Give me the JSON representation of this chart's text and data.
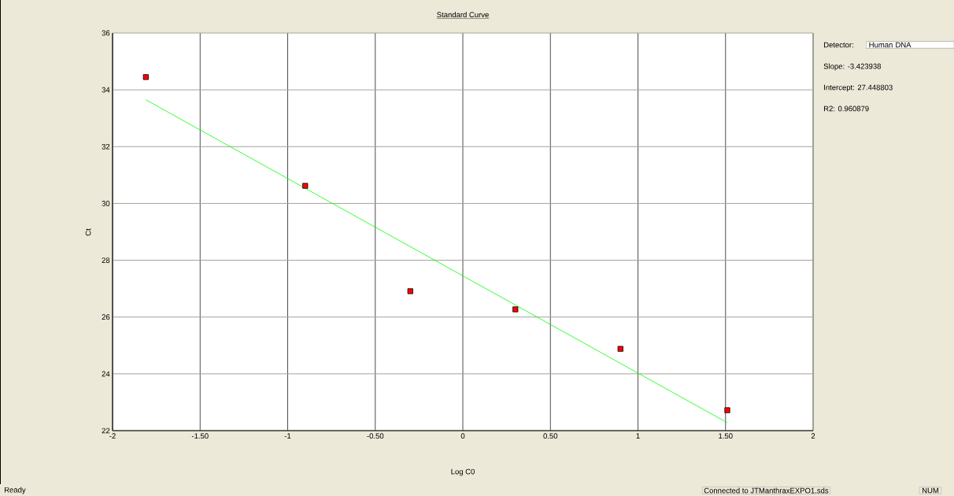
{
  "chart_data": {
    "type": "scatter",
    "title": "Standard Curve",
    "xlabel": "Log C0",
    "ylabel": "Ct",
    "xlim": [
      -2,
      2
    ],
    "ylim": [
      22,
      36
    ],
    "xticks": [
      {
        "value": -2,
        "label": "-2"
      },
      {
        "value": -1.5,
        "label": "-1.50"
      },
      {
        "value": -1,
        "label": "-1"
      },
      {
        "value": -0.5,
        "label": "-0.50"
      },
      {
        "value": 0,
        "label": "0"
      },
      {
        "value": 0.5,
        "label": "0.50"
      },
      {
        "value": 1,
        "label": "1"
      },
      {
        "value": 1.5,
        "label": "1.50"
      },
      {
        "value": 2,
        "label": "2"
      }
    ],
    "yticks": [
      22,
      24,
      26,
      28,
      30,
      32,
      34,
      36
    ],
    "grid": true,
    "marker": "square",
    "series": [
      {
        "color": "#ff0000",
        "x": [
          -1.81,
          -0.9,
          -0.3,
          0.3,
          0.9,
          1.51
        ],
        "values": [
          34.45,
          30.62,
          26.91,
          26.27,
          24.88,
          22.72
        ]
      },
      {
        "type": "line",
        "color": "#00ff00",
        "marker": "none",
        "x": [
          -1.81,
          1.51
        ],
        "values": [
          33.65,
          22.28
        ]
      }
    ],
    "annotations": [
      "Detector:",
      "Human DNA",
      "Slope:  -3.423938",
      "Intercept:  27.448803",
      "R2:  0.960879",
      "Ready",
      "Connected to JTManthraxEXPO1.sds",
      "NUM"
    ]
  }
}
